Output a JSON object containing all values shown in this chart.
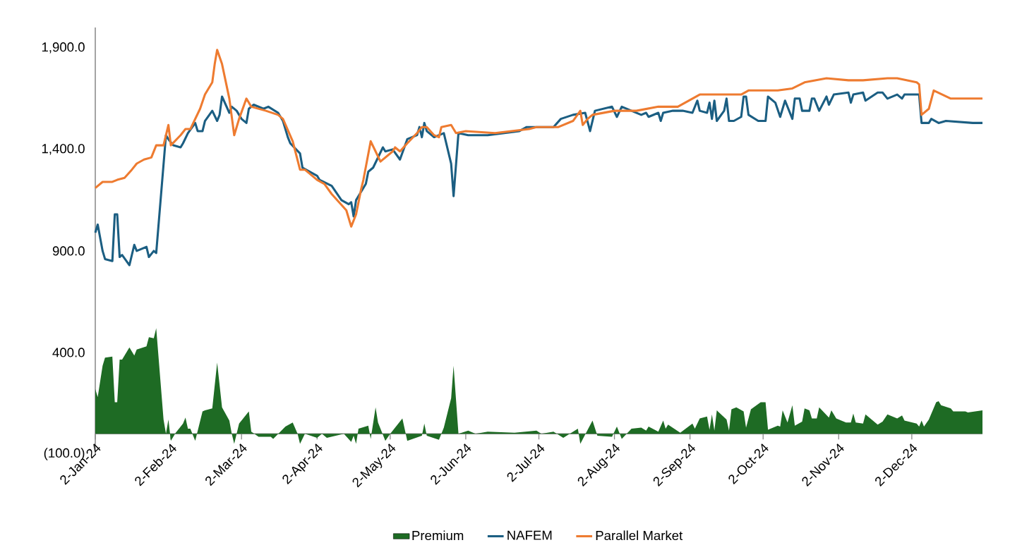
{
  "chart_data": {
    "type": "line",
    "xlim": [
      "2024-01-02",
      "2024-12-31"
    ],
    "xticks": [
      {
        "value": "2024-01-02",
        "label": "2-Jan-24"
      },
      {
        "value": "2024-02-02",
        "label": "2-Feb-24"
      },
      {
        "value": "2024-03-02",
        "label": "2-Mar-24"
      },
      {
        "value": "2024-04-02",
        "label": "2-Apr-24"
      },
      {
        "value": "2024-05-02",
        "label": "2-May-24"
      },
      {
        "value": "2024-06-02",
        "label": "2-Jun-24"
      },
      {
        "value": "2024-07-02",
        "label": "2-Jul-24"
      },
      {
        "value": "2024-08-02",
        "label": "2-Aug-24"
      },
      {
        "value": "2024-09-02",
        "label": "2-Sep-24"
      },
      {
        "value": "2024-10-02",
        "label": "2-Oct-24"
      },
      {
        "value": "2024-11-02",
        "label": "2-Nov-24"
      },
      {
        "value": "2024-12-02",
        "label": "2-Dec-24"
      }
    ],
    "ylim": [
      -100,
      2000
    ],
    "yticks": [
      {
        "value": -100,
        "label": "(100.0)"
      },
      {
        "value": 400,
        "label": "400.0"
      },
      {
        "value": 900,
        "label": "900.0"
      },
      {
        "value": 1400,
        "label": "1,400.0"
      },
      {
        "value": 1900,
        "label": "1,900.0"
      }
    ],
    "legend": "bottom",
    "series": [
      {
        "name": "Premium",
        "type": "area",
        "color": "#1e6b24",
        "x": [
          "2024-01-02",
          "2024-01-03",
          "2024-01-05",
          "2024-01-06",
          "2024-01-09",
          "2024-01-10",
          "2024-01-11",
          "2024-01-12",
          "2024-01-13",
          "2024-01-16",
          "2024-01-18",
          "2024-01-19",
          "2024-01-23",
          "2024-01-24",
          "2024-01-26",
          "2024-01-27",
          "2024-01-30",
          "2024-01-31",
          "2024-02-01",
          "2024-02-02",
          "2024-02-04",
          "2024-02-07",
          "2024-02-08",
          "2024-02-09",
          "2024-02-10",
          "2024-02-12",
          "2024-02-15",
          "2024-02-16",
          "2024-02-19",
          "2024-02-21",
          "2024-02-23",
          "2024-02-26",
          "2024-02-27",
          "2024-02-28",
          "2024-02-29",
          "2024-03-01",
          "2024-03-05",
          "2024-03-06",
          "2024-03-09",
          "2024-03-14",
          "2024-03-15",
          "2024-03-20",
          "2024-03-23",
          "2024-03-25",
          "2024-03-26",
          "2024-03-28",
          "2024-04-02",
          "2024-04-04",
          "2024-04-06",
          "2024-04-13",
          "2024-04-16",
          "2024-04-17",
          "2024-04-18",
          "2024-04-19",
          "2024-04-23",
          "2024-04-24",
          "2024-04-26",
          "2024-04-27",
          "2024-04-30",
          "2024-05-02",
          "2024-05-07",
          "2024-05-09",
          "2024-05-15",
          "2024-05-16",
          "2024-05-17",
          "2024-05-22",
          "2024-05-24",
          "2024-05-27",
          "2024-05-28",
          "2024-05-30",
          "2024-06-03",
          "2024-06-06",
          "2024-06-11",
          "2024-06-22",
          "2024-07-01",
          "2024-07-03",
          "2024-07-08",
          "2024-07-12",
          "2024-07-18",
          "2024-07-19",
          "2024-07-24",
          "2024-07-26",
          "2024-08-01",
          "2024-08-03",
          "2024-08-05",
          "2024-08-09",
          "2024-08-13",
          "2024-08-15",
          "2024-08-16",
          "2024-08-20",
          "2024-08-22",
          "2024-08-23",
          "2024-08-24",
          "2024-08-29",
          "2024-09-03",
          "2024-09-04",
          "2024-09-06",
          "2024-09-09",
          "2024-09-10",
          "2024-09-11",
          "2024-09-12",
          "2024-09-13",
          "2024-09-17",
          "2024-09-18",
          "2024-09-19",
          "2024-09-21",
          "2024-09-24",
          "2024-09-25",
          "2024-09-27",
          "2024-10-01",
          "2024-10-03",
          "2024-10-04",
          "2024-10-08",
          "2024-10-09",
          "2024-10-10",
          "2024-10-12",
          "2024-10-14",
          "2024-10-15",
          "2024-10-18",
          "2024-10-19",
          "2024-10-21",
          "2024-10-22",
          "2024-10-24",
          "2024-10-25",
          "2024-10-29",
          "2024-10-30",
          "2024-11-01",
          "2024-11-05",
          "2024-11-07",
          "2024-11-08",
          "2024-11-09",
          "2024-11-12",
          "2024-11-13",
          "2024-11-18",
          "2024-11-20",
          "2024-11-22",
          "2024-11-26",
          "2024-11-28",
          "2024-11-29",
          "2024-12-04",
          "2024-12-05",
          "2024-12-06",
          "2024-12-07",
          "2024-12-09",
          "2024-12-12",
          "2024-12-13",
          "2024-12-14",
          "2024-12-18",
          "2024-12-19",
          "2024-12-24",
          "2024-12-25",
          "2024-12-31"
        ],
        "values": [
          220,
          180,
          335,
          375,
          380,
          155,
          155,
          365,
          365,
          425,
          385,
          415,
          430,
          475,
          470,
          520,
          70,
          0,
          70,
          -35,
          5,
          50,
          80,
          25,
          25,
          -35,
          110,
          115,
          125,
          350,
          130,
          65,
          0,
          -50,
          0,
          50,
          110,
          10,
          -15,
          -15,
          -25,
          35,
          55,
          0,
          -50,
          0,
          -20,
          0,
          -20,
          0,
          -40,
          -10,
          -50,
          25,
          40,
          -25,
          130,
          55,
          -35,
          0,
          75,
          -35,
          -10,
          50,
          -10,
          -30,
          30,
          175,
          335,
          0,
          15,
          0,
          10,
          5,
          15,
          0,
          10,
          -20,
          25,
          -50,
          65,
          -10,
          -15,
          35,
          -25,
          25,
          30,
          15,
          35,
          10,
          65,
          25,
          45,
          5,
          50,
          25,
          75,
          85,
          20,
          95,
          15,
          115,
          70,
          15,
          120,
          130,
          110,
          30,
          120,
          155,
          155,
          20,
          40,
          35,
          115,
          55,
          140,
          40,
          60,
          125,
          115,
          75,
          75,
          130,
          80,
          115,
          75,
          55,
          55,
          100,
          55,
          50,
          95,
          45,
          60,
          95,
          75,
          90,
          65,
          50,
          35,
          65,
          35,
          70,
          155,
          160,
          140,
          125,
          110,
          110,
          105,
          115
        ]
      },
      {
        "name": "NAFEM",
        "color": "#1b5e82",
        "x": [
          "2024-01-02",
          "2024-01-03",
          "2024-01-05",
          "2024-01-06",
          "2024-01-09",
          "2024-01-10",
          "2024-01-11",
          "2024-01-12",
          "2024-01-13",
          "2024-01-16",
          "2024-01-18",
          "2024-01-19",
          "2024-01-23",
          "2024-01-24",
          "2024-01-26",
          "2024-01-27",
          "2024-01-31",
          "2024-02-01",
          "2024-02-03",
          "2024-02-06",
          "2024-02-07",
          "2024-02-09",
          "2024-02-12",
          "2024-02-13",
          "2024-02-15",
          "2024-02-16",
          "2024-02-19",
          "2024-02-21",
          "2024-02-22",
          "2024-02-23",
          "2024-02-26",
          "2024-02-27",
          "2024-02-29",
          "2024-03-02",
          "2024-03-04",
          "2024-03-05",
          "2024-03-07",
          "2024-03-11",
          "2024-03-13",
          "2024-03-17",
          "2024-03-19",
          "2024-03-21",
          "2024-03-22",
          "2024-03-26",
          "2024-03-27",
          "2024-04-02",
          "2024-04-03",
          "2024-04-08",
          "2024-04-12",
          "2024-04-15",
          "2024-04-16",
          "2024-04-17",
          "2024-04-18",
          "2024-04-22",
          "2024-04-23",
          "2024-04-25",
          "2024-04-29",
          "2024-04-30",
          "2024-05-03",
          "2024-05-06",
          "2024-05-09",
          "2024-05-13",
          "2024-05-14",
          "2024-05-15",
          "2024-05-16",
          "2024-05-17",
          "2024-05-20",
          "2024-05-24",
          "2024-05-27",
          "2024-05-28",
          "2024-05-30",
          "2024-06-03",
          "2024-06-11",
          "2024-06-24",
          "2024-06-27",
          "2024-07-08",
          "2024-07-11",
          "2024-07-16",
          "2024-07-21",
          "2024-07-23",
          "2024-07-25",
          "2024-08-01",
          "2024-08-03",
          "2024-08-05",
          "2024-08-13",
          "2024-08-15",
          "2024-08-16",
          "2024-08-20",
          "2024-08-21",
          "2024-08-22",
          "2024-08-26",
          "2024-08-30",
          "2024-09-03",
          "2024-09-05",
          "2024-09-06",
          "2024-09-09",
          "2024-09-10",
          "2024-09-11",
          "2024-09-12",
          "2024-09-13",
          "2024-09-16",
          "2024-09-17",
          "2024-09-18",
          "2024-09-20",
          "2024-09-23",
          "2024-09-24",
          "2024-09-25",
          "2024-09-26",
          "2024-09-30",
          "2024-10-03",
          "2024-10-04",
          "2024-10-07",
          "2024-10-09",
          "2024-10-11",
          "2024-10-14",
          "2024-10-15",
          "2024-10-17",
          "2024-10-18",
          "2024-10-21",
          "2024-10-22",
          "2024-10-23",
          "2024-10-25",
          "2024-10-28",
          "2024-10-29",
          "2024-10-31",
          "2024-11-06",
          "2024-11-07",
          "2024-11-08",
          "2024-11-12",
          "2024-11-13",
          "2024-11-18",
          "2024-11-20",
          "2024-11-22",
          "2024-11-26",
          "2024-11-28",
          "2024-11-29",
          "2024-12-05",
          "2024-12-06",
          "2024-12-09",
          "2024-12-10",
          "2024-12-13",
          "2024-12-16",
          "2024-12-27",
          "2024-12-31"
        ],
        "values": [
          990,
          1030,
          900,
          860,
          850,
          1080,
          1080,
          870,
          880,
          830,
          930,
          900,
          920,
          870,
          900,
          890,
          1470,
          1450,
          1420,
          1410,
          1430,
          1480,
          1530,
          1490,
          1490,
          1540,
          1590,
          1540,
          1570,
          1660,
          1580,
          1610,
          1590,
          1550,
          1530,
          1600,
          1620,
          1600,
          1610,
          1580,
          1540,
          1460,
          1430,
          1380,
          1310,
          1270,
          1250,
          1220,
          1150,
          1130,
          1140,
          1070,
          1150,
          1230,
          1290,
          1310,
          1410,
          1390,
          1400,
          1350,
          1450,
          1470,
          1510,
          1460,
          1530,
          1490,
          1460,
          1480,
          1330,
          1170,
          1480,
          1470,
          1470,
          1490,
          1510,
          1510,
          1550,
          1570,
          1580,
          1490,
          1590,
          1610,
          1560,
          1610,
          1570,
          1580,
          1560,
          1580,
          1540,
          1580,
          1590,
          1590,
          1580,
          1640,
          1590,
          1580,
          1630,
          1550,
          1640,
          1540,
          1590,
          1650,
          1540,
          1540,
          1560,
          1660,
          1660,
          1570,
          1540,
          1540,
          1660,
          1630,
          1560,
          1640,
          1550,
          1650,
          1650,
          1590,
          1590,
          1650,
          1650,
          1590,
          1660,
          1620,
          1670,
          1680,
          1630,
          1670,
          1680,
          1640,
          1680,
          1680,
          1650,
          1670,
          1650,
          1670,
          1670,
          1530,
          1530,
          1550,
          1530,
          1540,
          1530,
          1530
        ]
      },
      {
        "name": "Parallel Market",
        "color": "#ee7b30",
        "x": [
          "2024-01-02",
          "2024-01-05",
          "2024-01-06",
          "2024-01-09",
          "2024-01-11",
          "2024-01-14",
          "2024-01-17",
          "2024-01-19",
          "2024-01-22",
          "2024-01-25",
          "2024-01-27",
          "2024-01-30",
          "2024-02-01",
          "2024-02-02",
          "2024-02-06",
          "2024-02-08",
          "2024-02-10",
          "2024-02-14",
          "2024-02-16",
          "2024-02-19",
          "2024-02-20",
          "2024-02-21",
          "2024-02-23",
          "2024-02-26",
          "2024-02-28",
          "2024-03-01",
          "2024-03-04",
          "2024-03-06",
          "2024-03-12",
          "2024-03-17",
          "2024-03-19",
          "2024-03-23",
          "2024-03-26",
          "2024-03-28",
          "2024-04-02",
          "2024-04-05",
          "2024-04-08",
          "2024-04-11",
          "2024-04-14",
          "2024-04-16",
          "2024-04-18",
          "2024-04-20",
          "2024-04-21",
          "2024-04-24",
          "2024-04-26",
          "2024-04-28",
          "2024-05-03",
          "2024-05-04",
          "2024-05-06",
          "2024-05-09",
          "2024-05-13",
          "2024-05-15",
          "2024-05-17",
          "2024-05-20",
          "2024-05-22",
          "2024-05-23",
          "2024-05-27",
          "2024-05-29",
          "2024-06-02",
          "2024-06-14",
          "2024-06-28",
          "2024-07-01",
          "2024-07-10",
          "2024-07-16",
          "2024-07-19",
          "2024-07-20",
          "2024-07-22",
          "2024-07-24",
          "2024-08-02",
          "2024-08-11",
          "2024-08-20",
          "2024-08-28",
          "2024-09-06",
          "2024-09-15",
          "2024-09-23",
          "2024-09-26",
          "2024-10-05",
          "2024-10-08",
          "2024-10-14",
          "2024-10-19",
          "2024-10-28",
          "2024-11-06",
          "2024-11-12",
          "2024-11-22",
          "2024-11-26",
          "2024-12-04",
          "2024-12-05",
          "2024-12-06",
          "2024-12-09",
          "2024-12-11",
          "2024-12-18",
          "2024-12-24",
          "2024-12-31"
        ],
        "values": [
          1210,
          1240,
          1240,
          1240,
          1250,
          1260,
          1300,
          1330,
          1350,
          1360,
          1420,
          1420,
          1520,
          1420,
          1470,
          1500,
          1500,
          1600,
          1670,
          1730,
          1820,
          1890,
          1820,
          1650,
          1470,
          1550,
          1650,
          1610,
          1590,
          1570,
          1550,
          1440,
          1300,
          1300,
          1250,
          1230,
          1180,
          1140,
          1100,
          1020,
          1080,
          1200,
          1250,
          1440,
          1390,
          1340,
          1390,
          1410,
          1390,
          1430,
          1480,
          1510,
          1510,
          1470,
          1460,
          1510,
          1520,
          1480,
          1490,
          1480,
          1500,
          1510,
          1510,
          1540,
          1590,
          1520,
          1550,
          1570,
          1590,
          1590,
          1610,
          1610,
          1670,
          1670,
          1670,
          1690,
          1690,
          1690,
          1700,
          1730,
          1750,
          1740,
          1740,
          1750,
          1750,
          1730,
          1720,
          1570,
          1600,
          1690,
          1650,
          1650,
          1650
        ]
      }
    ]
  }
}
